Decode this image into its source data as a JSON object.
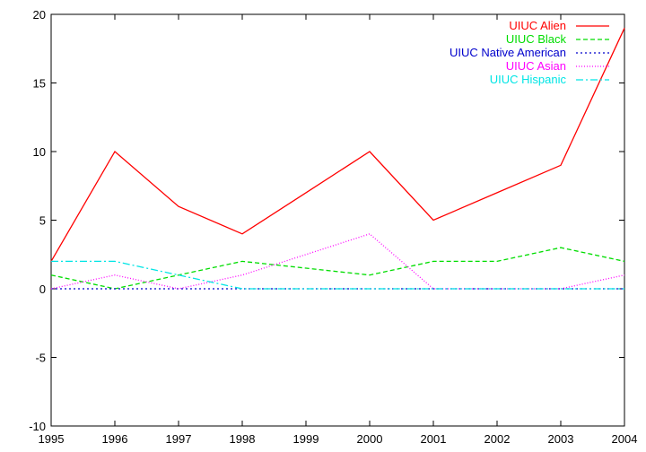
{
  "chart_data": {
    "type": "line",
    "title": "",
    "xlabel": "",
    "ylabel": "",
    "x": [
      1995,
      1996,
      1997,
      1998,
      1999,
      2000,
      2001,
      2002,
      2003,
      2004
    ],
    "xlim": [
      1995,
      2004
    ],
    "ylim": [
      -10,
      20
    ],
    "xticks": [
      "1995",
      "1996",
      "1997",
      "1998",
      "1999",
      "2000",
      "2001",
      "2002",
      "2003",
      "2004"
    ],
    "yticks": [
      "-10",
      "-5",
      "0",
      "5",
      "10",
      "15",
      "20"
    ],
    "grid": false,
    "legend_position": "top-right",
    "series": [
      {
        "name": "UIUC Alien",
        "color": "#ff0000",
        "dash": "solid",
        "values": [
          2,
          10,
          6,
          4,
          7,
          10,
          5,
          7,
          9,
          19
        ]
      },
      {
        "name": "UIUC Black",
        "color": "#00dd00",
        "dash": "dashed",
        "values": [
          1,
          0,
          1,
          2,
          1.5,
          1,
          2,
          2,
          3,
          2
        ]
      },
      {
        "name": "UIUC Native American",
        "color": "#0000cc",
        "dash": "dotted",
        "values": [
          0,
          0,
          0,
          0,
          0,
          0,
          0,
          0,
          0,
          0
        ]
      },
      {
        "name": "UIUC Asian",
        "color": "#ff00ff",
        "dash": "dotted-fine",
        "values": [
          0,
          1,
          0,
          1,
          2.5,
          4,
          0,
          0,
          0,
          1
        ]
      },
      {
        "name": "UIUC Hispanic",
        "color": "#00e5e5",
        "dash": "dashdot",
        "values": [
          2,
          2,
          1,
          0,
          0,
          0,
          0,
          0,
          0,
          0
        ]
      }
    ]
  }
}
